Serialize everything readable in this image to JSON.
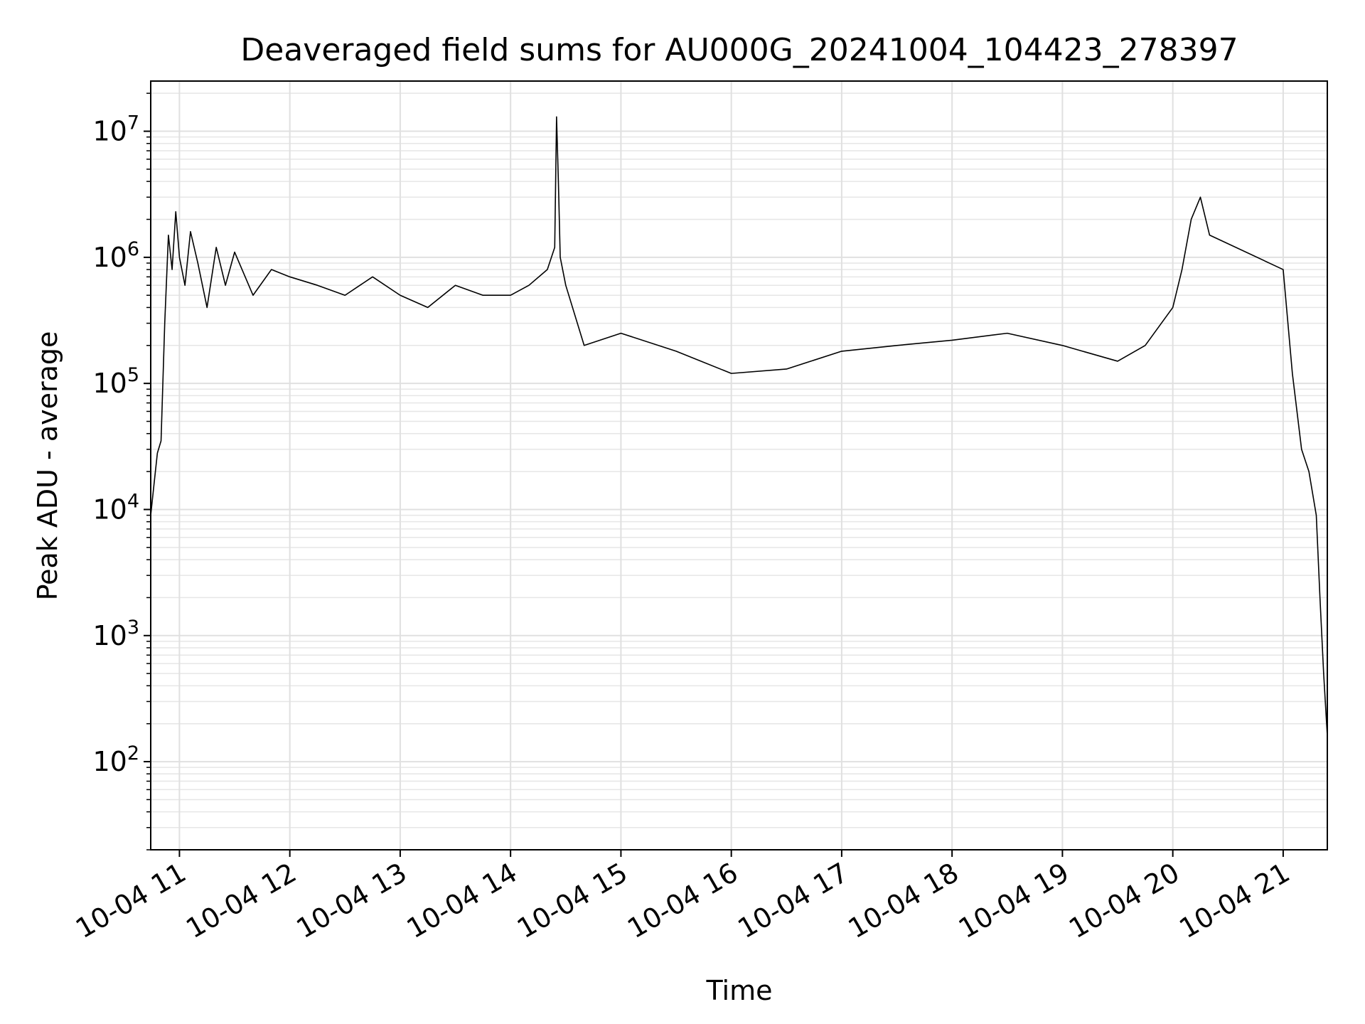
{
  "chart_data": {
    "type": "line",
    "title": "Deaveraged field sums for AU000G_20241004_104423_278397",
    "xlabel": "Time",
    "ylabel": "Peak ADU - average",
    "yscale": "log",
    "ylim": [
      20,
      25000000
    ],
    "xlim": [
      "2024-10-04T10:44:23",
      "2024-10-04T21:24:00"
    ],
    "grid": true,
    "x_ticks": [
      {
        "t": "2024-10-04T11:00:00",
        "label": "10-04 11"
      },
      {
        "t": "2024-10-04T12:00:00",
        "label": "10-04 12"
      },
      {
        "t": "2024-10-04T13:00:00",
        "label": "10-04 13"
      },
      {
        "t": "2024-10-04T14:00:00",
        "label": "10-04 14"
      },
      {
        "t": "2024-10-04T15:00:00",
        "label": "10-04 15"
      },
      {
        "t": "2024-10-04T16:00:00",
        "label": "10-04 16"
      },
      {
        "t": "2024-10-04T17:00:00",
        "label": "10-04 17"
      },
      {
        "t": "2024-10-04T18:00:00",
        "label": "10-04 18"
      },
      {
        "t": "2024-10-04T19:00:00",
        "label": "10-04 19"
      },
      {
        "t": "2024-10-04T20:00:00",
        "label": "10-04 20"
      },
      {
        "t": "2024-10-04T21:00:00",
        "label": "10-04 21"
      }
    ],
    "y_ticks": [
      {
        "value": 100,
        "base": "10",
        "exp": "2"
      },
      {
        "value": 1000,
        "base": "10",
        "exp": "3"
      },
      {
        "value": 10000,
        "base": "10",
        "exp": "4"
      },
      {
        "value": 100000,
        "base": "10",
        "exp": "5"
      },
      {
        "value": 1000000,
        "base": "10",
        "exp": "6"
      },
      {
        "value": 10000000,
        "base": "10",
        "exp": "7"
      }
    ],
    "line_color": "#000000",
    "series": [
      {
        "x": [
          "2024-10-04T10:44:23",
          "2024-10-04T10:46:00",
          "2024-10-04T10:48:00",
          "2024-10-04T10:50:00",
          "2024-10-04T10:52:00",
          "2024-10-04T10:54:00",
          "2024-10-04T10:56:00",
          "2024-10-04T10:58:00",
          "2024-10-04T11:00:00",
          "2024-10-04T11:03:00",
          "2024-10-04T11:06:00",
          "2024-10-04T11:10:00",
          "2024-10-04T11:15:00",
          "2024-10-04T11:20:00",
          "2024-10-04T11:25:00",
          "2024-10-04T11:30:00",
          "2024-10-04T11:40:00",
          "2024-10-04T11:50:00",
          "2024-10-04T12:00:00",
          "2024-10-04T12:15:00",
          "2024-10-04T12:30:00",
          "2024-10-04T12:45:00",
          "2024-10-04T13:00:00",
          "2024-10-04T13:15:00",
          "2024-10-04T13:30:00",
          "2024-10-04T13:45:00",
          "2024-10-04T14:00:00",
          "2024-10-04T14:10:00",
          "2024-10-04T14:20:00",
          "2024-10-04T14:24:00",
          "2024-10-04T14:25:00",
          "2024-10-04T14:26:00",
          "2024-10-04T14:27:00",
          "2024-10-04T14:30:00",
          "2024-10-04T14:40:00",
          "2024-10-04T15:00:00",
          "2024-10-04T15:30:00",
          "2024-10-04T16:00:00",
          "2024-10-04T16:30:00",
          "2024-10-04T17:00:00",
          "2024-10-04T17:30:00",
          "2024-10-04T18:00:00",
          "2024-10-04T18:30:00",
          "2024-10-04T19:00:00",
          "2024-10-04T19:30:00",
          "2024-10-04T19:45:00",
          "2024-10-04T20:00:00",
          "2024-10-04T20:05:00",
          "2024-10-04T20:10:00",
          "2024-10-04T20:15:00",
          "2024-10-04T20:20:00",
          "2024-10-04T21:00:00",
          "2024-10-04T21:05:00",
          "2024-10-04T21:10:00",
          "2024-10-04T21:14:00",
          "2024-10-04T21:18:00",
          "2024-10-04T21:20:00",
          "2024-10-04T21:22:00",
          "2024-10-04T21:24:00"
        ],
        "y": [
          9000,
          15000,
          28000,
          35000,
          300000,
          1500000,
          800000,
          2300000,
          1000000,
          600000,
          1600000,
          900000,
          400000,
          1200000,
          600000,
          1100000,
          500000,
          800000,
          700000,
          600000,
          500000,
          700000,
          500000,
          400000,
          600000,
          500000,
          500000,
          600000,
          800000,
          1200000,
          13000000,
          4000000,
          1000000,
          600000,
          200000,
          250000,
          180000,
          120000,
          130000,
          180000,
          200000,
          220000,
          250000,
          200000,
          150000,
          200000,
          400000,
          800000,
          2000000,
          3000000,
          1500000,
          800000,
          120000,
          30000,
          20000,
          9000,
          2000,
          500,
          160
        ]
      }
    ]
  }
}
